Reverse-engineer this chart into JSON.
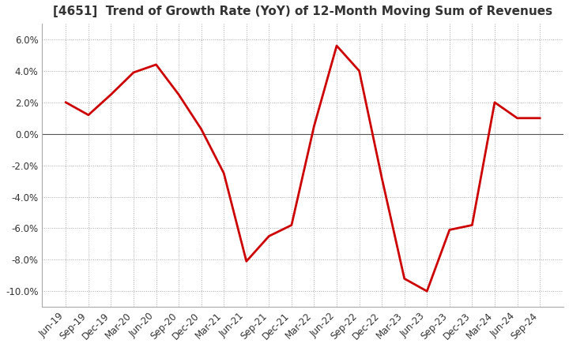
{
  "title": "[4651]  Trend of Growth Rate (YoY) of 12-Month Moving Sum of Revenues",
  "x_labels": [
    "Jun-19",
    "Sep-19",
    "Dec-19",
    "Mar-20",
    "Jun-20",
    "Sep-20",
    "Dec-20",
    "Mar-21",
    "Jun-21",
    "Sep-21",
    "Dec-21",
    "Mar-22",
    "Jun-22",
    "Sep-22",
    "Dec-22",
    "Mar-23",
    "Jun-23",
    "Sep-23",
    "Dec-23",
    "Mar-24",
    "Jun-24",
    "Sep-24"
  ],
  "y_values": [
    2.0,
    1.2,
    2.5,
    3.9,
    4.4,
    2.5,
    0.3,
    -2.5,
    -8.1,
    -6.5,
    -5.8,
    0.5,
    5.6,
    4.0,
    -2.8,
    -9.2,
    -10.0,
    -6.1,
    -5.8,
    2.0,
    1.0,
    1.0
  ],
  "line_color": "#cc0000",
  "line_width": 2.0,
  "ylim": [
    -11.0,
    7.0
  ],
  "yticks": [
    -10.0,
    -8.0,
    -6.0,
    -4.0,
    -2.0,
    0.0,
    2.0,
    4.0,
    6.0
  ],
  "bg_color": "#ffffff",
  "plot_bg_color": "#ffffff",
  "grid_color": "#aaaaaa",
  "zero_line_color": "#555555",
  "spine_color": "#aaaaaa",
  "title_fontsize": 11,
  "tick_fontsize": 8.5,
  "title_color": "#333333"
}
